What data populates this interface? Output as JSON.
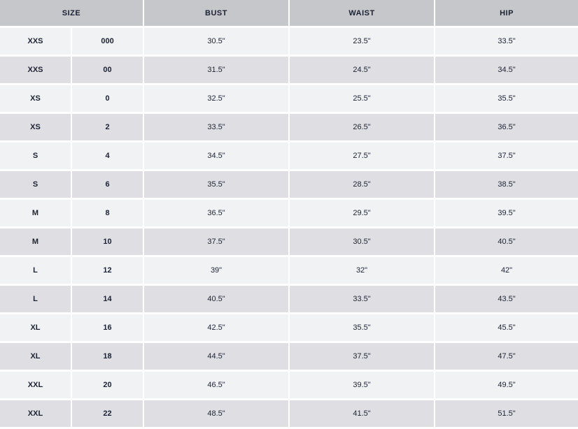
{
  "headers": {
    "size": "SIZE",
    "bust": "BUST",
    "waist": "WAIST",
    "hip": "HIP"
  },
  "rows": [
    {
      "letter": "XXS",
      "number": "000",
      "bust": "30.5\"",
      "waist": "23.5\"",
      "hip": "33.5\""
    },
    {
      "letter": "XXS",
      "number": "00",
      "bust": "31.5\"",
      "waist": "24.5\"",
      "hip": "34.5\""
    },
    {
      "letter": "XS",
      "number": "0",
      "bust": "32.5\"",
      "waist": "25.5\"",
      "hip": "35.5\""
    },
    {
      "letter": "XS",
      "number": "2",
      "bust": "33.5\"",
      "waist": "26.5\"",
      "hip": "36.5\""
    },
    {
      "letter": "S",
      "number": "4",
      "bust": "34.5\"",
      "waist": "27.5\"",
      "hip": "37.5\""
    },
    {
      "letter": "S",
      "number": "6",
      "bust": "35.5\"",
      "waist": "28.5\"",
      "hip": "38.5\""
    },
    {
      "letter": "M",
      "number": "8",
      "bust": "36.5\"",
      "waist": "29.5\"",
      "hip": "39.5\""
    },
    {
      "letter": "M",
      "number": "10",
      "bust": "37.5\"",
      "waist": "30.5\"",
      "hip": "40.5\""
    },
    {
      "letter": "L",
      "number": "12",
      "bust": "39\"",
      "waist": "32\"",
      "hip": "42\""
    },
    {
      "letter": "L",
      "number": "14",
      "bust": "40.5\"",
      "waist": "33.5\"",
      "hip": "43.5\""
    },
    {
      "letter": "XL",
      "number": "16",
      "bust": "42.5\"",
      "waist": "35.5\"",
      "hip": "45.5\""
    },
    {
      "letter": "XL",
      "number": "18",
      "bust": "44.5\"",
      "waist": "37.5\"",
      "hip": "47.5\""
    },
    {
      "letter": "XXL",
      "number": "20",
      "bust": "46.5\"",
      "waist": "39.5\"",
      "hip": "49.5\""
    },
    {
      "letter": "XXL",
      "number": "22",
      "bust": "48.5\"",
      "waist": "41.5\"",
      "hip": "51.5\""
    }
  ]
}
